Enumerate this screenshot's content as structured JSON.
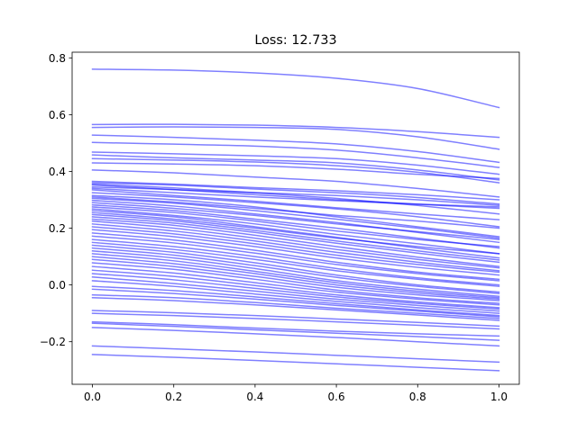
{
  "chart_data": {
    "type": "line",
    "title": "Loss: 12.733",
    "xlabel": "",
    "ylabel": "",
    "xlim": [
      -0.05,
      1.05
    ],
    "ylim": [
      -0.35,
      0.82
    ],
    "xticks": [
      0.0,
      0.2,
      0.4,
      0.6,
      0.8,
      1.0
    ],
    "xtick_labels": [
      "0.0",
      "0.2",
      "0.4",
      "0.6",
      "0.8",
      "1.0"
    ],
    "yticks": [
      -0.2,
      0.0,
      0.2,
      0.4,
      0.6,
      0.8
    ],
    "ytick_labels": [
      "−0.2",
      "0.0",
      "0.2",
      "0.4",
      "0.6",
      "0.8"
    ],
    "grid": false,
    "line_color": "#0000ff",
    "line_opacity": 0.5,
    "x": [
      0.0,
      0.2,
      0.4,
      0.6,
      0.8,
      1.0
    ],
    "series": [
      {
        "values": [
          0.76,
          0.757,
          0.747,
          0.728,
          0.692,
          0.625
        ]
      },
      {
        "values": [
          0.565,
          0.566,
          0.563,
          0.555,
          0.54,
          0.52
        ]
      },
      {
        "values": [
          0.555,
          0.557,
          0.555,
          0.548,
          0.522,
          0.478
        ]
      },
      {
        "values": [
          0.528,
          0.52,
          0.51,
          0.497,
          0.47,
          0.432
        ]
      },
      {
        "values": [
          0.502,
          0.496,
          0.489,
          0.475,
          0.448,
          0.414
        ]
      },
      {
        "values": [
          0.468,
          0.462,
          0.455,
          0.445,
          0.422,
          0.39
        ]
      },
      {
        "values": [
          0.458,
          0.448,
          0.44,
          0.43,
          0.405,
          0.37
        ]
      },
      {
        "values": [
          0.445,
          0.44,
          0.433,
          0.42,
          0.397,
          0.36
        ]
      },
      {
        "values": [
          0.43,
          0.426,
          0.42,
          0.408,
          0.39,
          0.375
        ]
      },
      {
        "values": [
          0.405,
          0.395,
          0.38,
          0.365,
          0.34,
          0.31
        ]
      },
      {
        "values": [
          0.365,
          0.355,
          0.343,
          0.332,
          0.318,
          0.3
        ]
      },
      {
        "values": [
          0.36,
          0.352,
          0.338,
          0.325,
          0.308,
          0.285
        ]
      },
      {
        "values": [
          0.355,
          0.342,
          0.325,
          0.305,
          0.28,
          0.25
        ]
      },
      {
        "values": [
          0.352,
          0.336,
          0.318,
          0.3,
          0.285,
          0.275
        ]
      },
      {
        "values": [
          0.345,
          0.336,
          0.325,
          0.315,
          0.3,
          0.28
        ]
      },
      {
        "values": [
          0.34,
          0.325,
          0.31,
          0.297,
          0.284,
          0.27
        ]
      },
      {
        "values": [
          0.335,
          0.315,
          0.295,
          0.272,
          0.25,
          0.23
        ]
      },
      {
        "values": [
          0.325,
          0.31,
          0.29,
          0.268,
          0.24,
          0.205
        ]
      },
      {
        "values": [
          0.315,
          0.3,
          0.275,
          0.24,
          0.205,
          0.17
        ]
      },
      {
        "values": [
          0.31,
          0.292,
          0.27,
          0.245,
          0.225,
          0.2
        ]
      },
      {
        "values": [
          0.305,
          0.288,
          0.262,
          0.232,
          0.2,
          0.165
        ]
      },
      {
        "values": [
          0.298,
          0.278,
          0.25,
          0.22,
          0.185,
          0.15
        ]
      },
      {
        "values": [
          0.29,
          0.27,
          0.245,
          0.215,
          0.188,
          0.16
        ]
      },
      {
        "values": [
          0.282,
          0.262,
          0.232,
          0.2,
          0.165,
          0.13
        ]
      },
      {
        "values": [
          0.275,
          0.255,
          0.225,
          0.19,
          0.16,
          0.135
        ]
      },
      {
        "values": [
          0.268,
          0.245,
          0.215,
          0.178,
          0.145,
          0.11
        ]
      },
      {
        "values": [
          0.262,
          0.24,
          0.205,
          0.168,
          0.13,
          0.095
        ]
      },
      {
        "values": [
          0.255,
          0.232,
          0.2,
          0.165,
          0.135,
          0.11
        ]
      },
      {
        "values": [
          0.248,
          0.226,
          0.192,
          0.155,
          0.12,
          0.088
        ]
      },
      {
        "values": [
          0.24,
          0.218,
          0.185,
          0.147,
          0.112,
          0.08
        ]
      },
      {
        "values": [
          0.232,
          0.21,
          0.175,
          0.135,
          0.098,
          0.065
        ]
      },
      {
        "values": [
          0.225,
          0.2,
          0.165,
          0.125,
          0.09,
          0.06
        ]
      },
      {
        "values": [
          0.215,
          0.19,
          0.155,
          0.115,
          0.08,
          0.05
        ]
      },
      {
        "values": [
          0.205,
          0.18,
          0.145,
          0.105,
          0.072,
          0.045
        ]
      },
      {
        "values": [
          0.195,
          0.17,
          0.135,
          0.095,
          0.062,
          0.035
        ]
      },
      {
        "values": [
          0.183,
          0.158,
          0.122,
          0.08,
          0.045,
          0.02
        ]
      },
      {
        "values": [
          0.172,
          0.148,
          0.112,
          0.072,
          0.04,
          0.015
        ]
      },
      {
        "values": [
          0.16,
          0.135,
          0.1,
          0.058,
          0.025,
          0.0
        ]
      },
      {
        "values": [
          0.15,
          0.125,
          0.09,
          0.05,
          0.02,
          -0.005
        ]
      },
      {
        "values": [
          0.14,
          0.115,
          0.078,
          0.035,
          0.0,
          -0.025
        ]
      },
      {
        "values": [
          0.13,
          0.105,
          0.068,
          0.027,
          -0.005,
          -0.03
        ]
      },
      {
        "values": [
          0.12,
          0.095,
          0.058,
          0.015,
          -0.015,
          -0.04
        ]
      },
      {
        "values": [
          0.11,
          0.085,
          0.048,
          0.008,
          -0.022,
          -0.045
        ]
      },
      {
        "values": [
          0.1,
          0.075,
          0.04,
          0.0,
          -0.028,
          -0.05
        ]
      },
      {
        "values": [
          0.09,
          0.065,
          0.03,
          -0.008,
          -0.035,
          -0.055
        ]
      },
      {
        "values": [
          0.078,
          0.055,
          0.02,
          -0.018,
          -0.045,
          -0.065
        ]
      },
      {
        "values": [
          0.065,
          0.042,
          0.008,
          -0.025,
          -0.05,
          -0.07
        ]
      },
      {
        "values": [
          0.052,
          0.03,
          -0.002,
          -0.035,
          -0.06,
          -0.08
        ]
      },
      {
        "values": [
          0.04,
          0.018,
          -0.012,
          -0.042,
          -0.065,
          -0.085
        ]
      },
      {
        "values": [
          0.028,
          0.005,
          -0.022,
          -0.05,
          -0.072,
          -0.092
        ]
      },
      {
        "values": [
          0.015,
          -0.005,
          -0.032,
          -0.058,
          -0.08,
          -0.1
        ]
      },
      {
        "values": [
          -0.005,
          -0.02,
          -0.042,
          -0.066,
          -0.088,
          -0.108
        ]
      },
      {
        "values": [
          -0.015,
          -0.03,
          -0.05,
          -0.072,
          -0.092,
          -0.112
        ]
      },
      {
        "values": [
          -0.035,
          -0.045,
          -0.062,
          -0.082,
          -0.1,
          -0.118
        ]
      },
      {
        "values": [
          -0.045,
          -0.055,
          -0.07,
          -0.088,
          -0.106,
          -0.125
        ]
      },
      {
        "values": [
          -0.09,
          -0.098,
          -0.108,
          -0.12,
          -0.132,
          -0.145
        ]
      },
      {
        "values": [
          -0.1,
          -0.108,
          -0.118,
          -0.13,
          -0.142,
          -0.155
        ]
      },
      {
        "values": [
          -0.13,
          -0.14,
          -0.152,
          -0.163,
          -0.172,
          -0.18
        ]
      },
      {
        "values": [
          -0.135,
          -0.146,
          -0.158,
          -0.17,
          -0.182,
          -0.195
        ]
      },
      {
        "values": [
          -0.15,
          -0.16,
          -0.172,
          -0.185,
          -0.2,
          -0.215
        ]
      },
      {
        "values": [
          -0.215,
          -0.225,
          -0.236,
          -0.248,
          -0.26,
          -0.272
        ]
      },
      {
        "values": [
          -0.245,
          -0.255,
          -0.266,
          -0.278,
          -0.29,
          -0.302
        ]
      }
    ]
  }
}
